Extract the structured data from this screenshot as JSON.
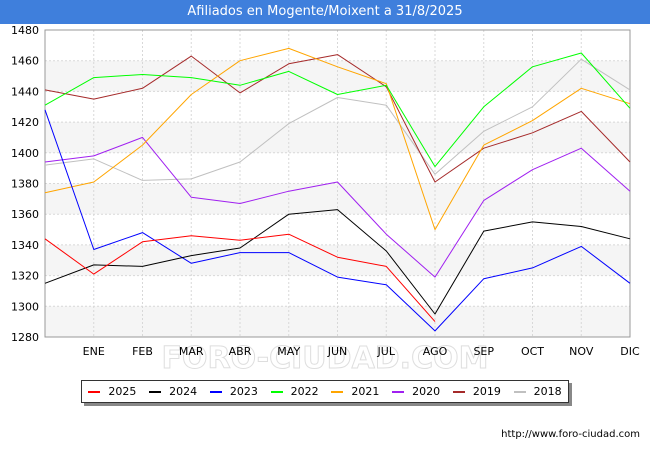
{
  "header": {
    "title": "Afiliados en Mogente/Moixent a 31/8/2025"
  },
  "footer": {
    "url": "http://www.foro-ciudad.com"
  },
  "watermark": "FORO-CIUDAD.COM",
  "chart_data": {
    "type": "line",
    "title": "Afiliados en Mogente/Moixent a 31/8/2025",
    "xlabel": "",
    "ylabel": "",
    "categories": [
      "",
      "ENE",
      "FEB",
      "MAR",
      "ABR",
      "MAY",
      "JUN",
      "JUL",
      "AGO",
      "SEP",
      "OCT",
      "NOV",
      "DIC"
    ],
    "ylim": [
      1280,
      1480
    ],
    "yticks": [
      1280,
      1300,
      1320,
      1340,
      1360,
      1380,
      1400,
      1420,
      1440,
      1460,
      1480
    ],
    "grid": true,
    "legend_position": "bottom",
    "series": [
      {
        "name": "2025",
        "color": "#ff0000",
        "values": [
          1344,
          1321,
          1342,
          1346,
          1343,
          1347,
          1332,
          1326,
          1290,
          null,
          null,
          null,
          null
        ]
      },
      {
        "name": "2024",
        "color": "#000000",
        "values": [
          1315,
          1327,
          1326,
          1333,
          1338,
          1360,
          1363,
          1336,
          1295,
          1349,
          1355,
          1352,
          1344
        ]
      },
      {
        "name": "2023",
        "color": "#0000ff",
        "values": [
          1428,
          1337,
          1348,
          1328,
          1335,
          1335,
          1319,
          1314,
          1284,
          1318,
          1325,
          1339,
          1315
        ]
      },
      {
        "name": "2022",
        "color": "#00ff00",
        "values": [
          1431,
          1449,
          1451,
          1449,
          1444,
          1453,
          1438,
          1444,
          1391,
          1430,
          1456,
          1465,
          1429
        ]
      },
      {
        "name": "2021",
        "color": "#ffa500",
        "values": [
          1374,
          1381,
          1405,
          1438,
          1460,
          1468,
          1456,
          1445,
          1350,
          1405,
          1421,
          1442,
          1432
        ]
      },
      {
        "name": "2020",
        "color": "#a020f0",
        "values": [
          1394,
          1398,
          1410,
          1371,
          1367,
          1375,
          1381,
          1347,
          1319,
          1369,
          1389,
          1403,
          1375
        ]
      },
      {
        "name": "2019",
        "color": "#a52a2a",
        "values": [
          1441,
          1435,
          1442,
          1463,
          1439,
          1458,
          1464,
          1443,
          1381,
          1403,
          1413,
          1427,
          1394
        ]
      },
      {
        "name": "2018",
        "color": "#c0c0c0",
        "values": [
          1392,
          1396,
          1382,
          1383,
          1394,
          1419,
          1436,
          1431,
          1386,
          1414,
          1430,
          1461,
          1441
        ]
      }
    ]
  }
}
